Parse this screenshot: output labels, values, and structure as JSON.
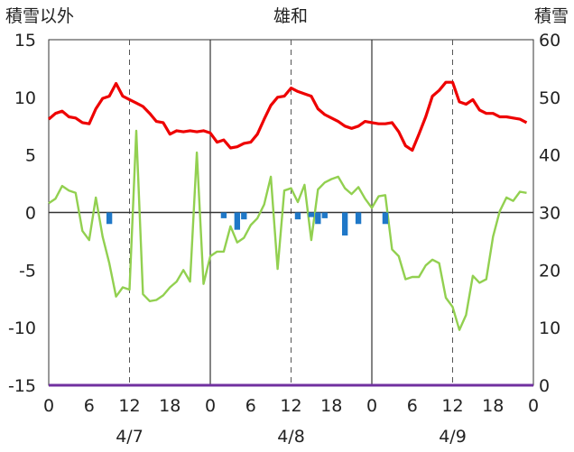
{
  "chart_data": {
    "type": "line",
    "title": "雄和",
    "ylabel_left": "積雪以外",
    "ylabel_right": "積雪",
    "ylim_left": [
      -15,
      15
    ],
    "ylim_right": [
      0,
      60
    ],
    "y_ticks_left": [
      "15",
      "10",
      "5",
      "0",
      "-5",
      "-10",
      "-15"
    ],
    "y_ticks_right": [
      "60",
      "50",
      "40",
      "30",
      "20",
      "10",
      "0"
    ],
    "x_range": [
      0,
      72
    ],
    "x_ticks": [
      {
        "x": 0,
        "label": "0"
      },
      {
        "x": 6,
        "label": "6"
      },
      {
        "x": 12,
        "label": "12"
      },
      {
        "x": 18,
        "label": "18"
      },
      {
        "x": 24,
        "label": "0"
      },
      {
        "x": 30,
        "label": "6"
      },
      {
        "x": 36,
        "label": "12"
      },
      {
        "x": 42,
        "label": "18"
      },
      {
        "x": 48,
        "label": "0"
      },
      {
        "x": 54,
        "label": "6"
      },
      {
        "x": 60,
        "label": "12"
      },
      {
        "x": 66,
        "label": "18"
      },
      {
        "x": 72,
        "label": "0"
      }
    ],
    "dates": [
      {
        "x": 12,
        "label": "4/7"
      },
      {
        "x": 36,
        "label": "4/8"
      },
      {
        "x": 60,
        "label": "4/9"
      }
    ],
    "day_boundaries": [
      24,
      48
    ],
    "noon_lines": [
      12,
      36,
      60
    ],
    "series": [
      {
        "axis": "left",
        "kind": "line",
        "color": "#ee0000",
        "x": [
          0,
          1,
          2,
          3,
          4,
          5,
          6,
          7,
          8,
          9,
          10,
          11,
          12,
          13,
          14,
          15,
          16,
          17,
          18,
          19,
          20,
          21,
          22,
          23,
          24,
          25,
          26,
          27,
          28,
          29,
          30,
          31,
          32,
          33,
          34,
          35,
          36,
          37,
          38,
          39,
          40,
          41,
          42,
          43,
          44,
          45,
          46,
          47,
          48,
          49,
          50,
          51,
          52,
          53,
          54,
          55,
          56,
          57,
          58,
          59,
          60,
          61,
          62,
          63,
          64,
          65,
          66,
          67,
          68,
          69,
          70,
          71
        ],
        "y": [
          8.1,
          8.6,
          8.8,
          8.3,
          8.2,
          7.8,
          7.7,
          9.0,
          9.9,
          10.1,
          11.2,
          10.1,
          9.8,
          9.5,
          9.2,
          8.6,
          7.9,
          7.8,
          6.8,
          7.1,
          7.0,
          7.1,
          7.0,
          7.1,
          6.9,
          6.1,
          6.3,
          5.6,
          5.7,
          6.0,
          6.1,
          6.8,
          8.1,
          9.3,
          10.0,
          10.1,
          10.8,
          10.5,
          10.3,
          10.1,
          9.0,
          8.5,
          8.2,
          7.9,
          7.5,
          7.3,
          7.5,
          7.9,
          7.8,
          7.7,
          7.7,
          7.8,
          7.0,
          5.8,
          5.4,
          6.8,
          8.3,
          10.1,
          10.6,
          11.3,
          11.3,
          9.6,
          9.4,
          9.8,
          8.9,
          8.6,
          8.6,
          8.3,
          8.3,
          8.2,
          8.1,
          7.8
        ]
      },
      {
        "axis": "left",
        "kind": "line",
        "color": "#92d050",
        "x": [
          0,
          1,
          2,
          3,
          4,
          5,
          6,
          7,
          8,
          9,
          10,
          11,
          12,
          13,
          14,
          15,
          16,
          17,
          18,
          19,
          20,
          21,
          22,
          23,
          24,
          25,
          26,
          27,
          28,
          29,
          30,
          31,
          32,
          33,
          34,
          35,
          36,
          37,
          38,
          39,
          40,
          41,
          42,
          43,
          44,
          45,
          46,
          47,
          48,
          49,
          50,
          51,
          52,
          53,
          54,
          55,
          56,
          57,
          58,
          59,
          60,
          61,
          62,
          63,
          64,
          65,
          66,
          67,
          68,
          69,
          70,
          71
        ],
        "y": [
          0.8,
          1.2,
          2.3,
          1.9,
          1.7,
          -1.6,
          -2.4,
          1.3,
          -2.1,
          -4.4,
          -7.3,
          -6.5,
          -6.7,
          7.1,
          -7.1,
          -7.7,
          -7.6,
          -7.2,
          -6.5,
          -6.0,
          -5.0,
          -6.0,
          5.2,
          -6.2,
          -3.8,
          -3.4,
          -3.4,
          -1.2,
          -2.6,
          -2.2,
          -1.1,
          -0.5,
          0.7,
          3.1,
          -4.9,
          1.9,
          2.1,
          0.9,
          2.4,
          -2.4,
          2.0,
          2.6,
          2.9,
          3.1,
          2.1,
          1.6,
          2.2,
          1.2,
          0.4,
          1.4,
          1.5,
          -3.2,
          -3.8,
          -5.8,
          -5.6,
          -5.6,
          -4.6,
          -4.1,
          -4.4,
          -7.4,
          -8.2,
          -10.2,
          -8.9,
          -5.5,
          -6.1,
          -5.8,
          -2.1,
          0.1,
          1.3,
          1.0,
          1.8,
          1.7
        ]
      },
      {
        "axis": "left",
        "kind": "bar",
        "color": "#1f78c8",
        "x": [
          9,
          26,
          28,
          29,
          37,
          39,
          40,
          41,
          44,
          46,
          50
        ],
        "y": [
          -1.0,
          -0.5,
          -1.5,
          -0.6,
          -0.6,
          -0.4,
          -1.0,
          -0.5,
          -2.0,
          -1.0,
          -1.0
        ]
      },
      {
        "axis": "right",
        "kind": "line",
        "color": "#7030a0",
        "x": [
          0,
          72
        ],
        "y": [
          0,
          0
        ]
      }
    ]
  }
}
